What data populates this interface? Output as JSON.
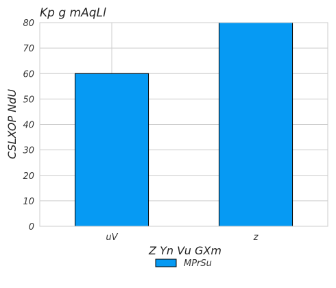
{
  "chart_data": {
    "type": "bar",
    "title": "Kp g  mAqLl",
    "xlabel": "Z Yn Vu GXm",
    "ylabel": "CSLXOP  NdU",
    "categories": [
      "uV",
      "z"
    ],
    "series": [
      {
        "name": "MPrSu",
        "values": [
          60,
          80
        ],
        "color": "#069af3"
      }
    ],
    "ylim": [
      0,
      80
    ],
    "yticks": [
      0,
      10,
      20,
      30,
      40,
      50,
      60,
      70,
      80
    ],
    "grid": true,
    "legend": "bottom-center"
  }
}
